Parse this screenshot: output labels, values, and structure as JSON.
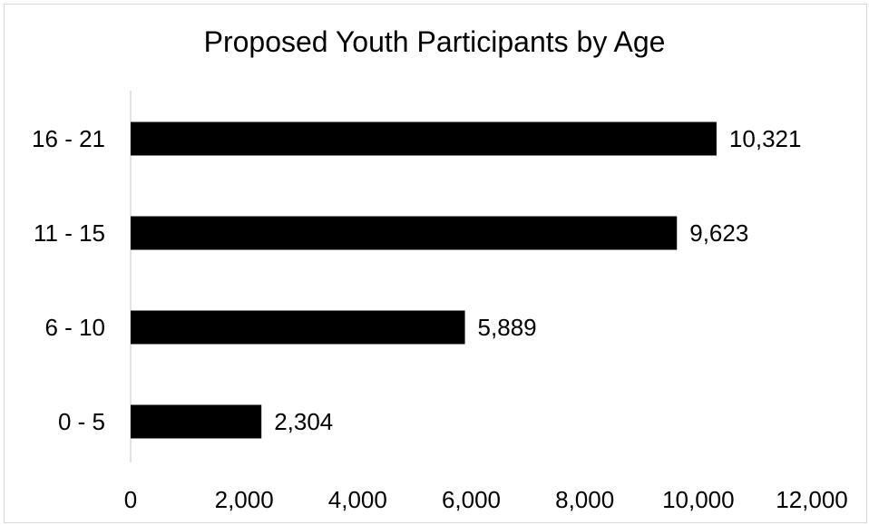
{
  "chart_data": {
    "type": "bar",
    "orientation": "horizontal",
    "title": "Proposed Youth Participants by Age",
    "xlabel": "",
    "ylabel": "",
    "categories": [
      "16 - 21",
      "11 - 15",
      "6 - 10",
      "0 - 5"
    ],
    "values": [
      10321,
      9623,
      5889,
      2304
    ],
    "data_labels": [
      "10,321",
      "9,623",
      "5,889",
      "2,304"
    ],
    "xlim": [
      0,
      12000
    ],
    "x_ticks": [
      0,
      2000,
      4000,
      6000,
      8000,
      10000,
      12000
    ],
    "x_tick_labels": [
      "0",
      "2,000",
      "4,000",
      "6,000",
      "8,000",
      "10,000",
      "12,000"
    ],
    "grid": false,
    "legend": "none",
    "bar_color": "#000000",
    "axis_color": "#d9d9d9"
  }
}
